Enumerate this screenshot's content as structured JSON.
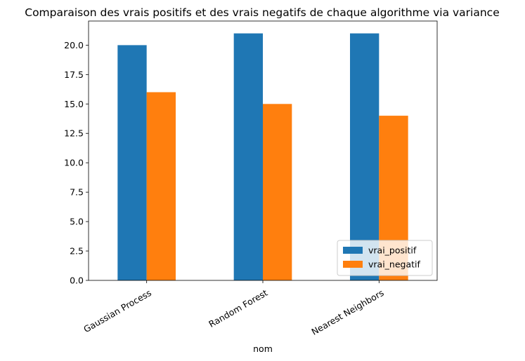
{
  "chart_data": {
    "type": "bar",
    "title": "Comparaison des vrais positifs et des vrais negatifs de chaque algorithme via variance",
    "xlabel": "nom",
    "ylabel": "",
    "categories": [
      "Gaussian Process",
      "Random Forest",
      "Nearest Neighbors"
    ],
    "series": [
      {
        "name": "vrai_positif",
        "values": [
          20,
          21,
          21
        ],
        "color": "#1f77b4"
      },
      {
        "name": "vrai_negatif",
        "values": [
          16,
          15,
          14
        ],
        "color": "#ff7f0e"
      }
    ],
    "ylim": [
      0,
      22.05
    ],
    "yticks": [
      "0.0",
      "2.5",
      "5.0",
      "7.5",
      "10.0",
      "12.5",
      "15.0",
      "17.5",
      "20.0"
    ],
    "ytick_values": [
      0,
      2.5,
      5,
      7.5,
      10,
      12.5,
      15,
      17.5,
      20
    ],
    "xtick_rotation": 30,
    "legend_position": "lower-right",
    "grid": false
  }
}
